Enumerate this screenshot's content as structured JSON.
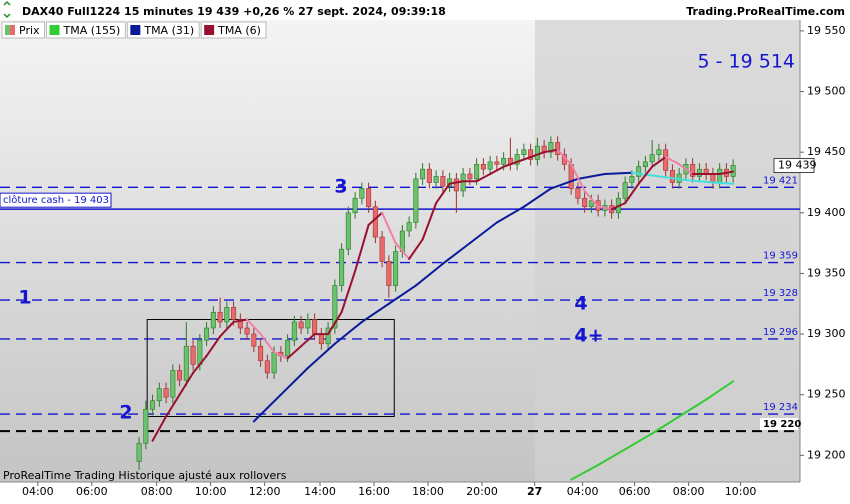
{
  "header": {
    "title": "DAX40 Full1224 15 minutes 19 439 +0,26 % 27 sept. 2024, 09:39:18",
    "site": "Trading.ProRealTime.com"
  },
  "footer": "ProRealTime Trading  Historique ajusté aux rollovers",
  "chart_data": {
    "type": "candlestick",
    "xlim": [
      -5.6,
      112.9
    ],
    "ylim": [
      19178,
      19559
    ],
    "xticks": [
      {
        "value": 0,
        "label": "04:00"
      },
      {
        "value": 8,
        "label": "06:00"
      },
      {
        "value": 17.6,
        "label": "08:00"
      },
      {
        "value": 25.6,
        "label": "10:00"
      },
      {
        "value": 33.6,
        "label": "12:00"
      },
      {
        "value": 41.8,
        "label": "14:00"
      },
      {
        "value": 49.8,
        "label": "16:00"
      },
      {
        "value": 57.8,
        "label": "18:00"
      },
      {
        "value": 65.8,
        "label": "20:00"
      },
      {
        "value": 73.6,
        "label": "27"
      },
      {
        "value": 80.7,
        "label": "04:00"
      },
      {
        "value": 88.4,
        "label": "06:00"
      },
      {
        "value": 96.4,
        "label": "08:00"
      },
      {
        "value": 104.1,
        "label": "10:00"
      }
    ],
    "yticks": [
      {
        "value": 19200,
        "label": "19 200"
      },
      {
        "value": 19250,
        "label": "19 250"
      },
      {
        "value": 19300,
        "label": "19 300"
      },
      {
        "value": 19350,
        "label": "19 350"
      },
      {
        "value": 19400,
        "label": "19 400"
      },
      {
        "value": 19450,
        "label": "19 450"
      },
      {
        "value": 19500,
        "label": "19 500"
      },
      {
        "value": 19550,
        "label": "19 550"
      }
    ],
    "price": {
      "name": "Prix",
      "up_color": "#6cc26c",
      "down_color": "#e86a6a",
      "x": [
        15,
        16,
        17,
        18,
        19,
        20,
        21,
        22,
        23,
        24,
        25,
        26,
        27,
        28,
        29,
        30,
        31,
        32,
        33,
        34,
        35,
        36,
        37,
        38,
        39,
        40,
        41,
        42,
        43,
        44,
        45,
        46,
        47,
        48,
        49,
        50,
        51,
        52,
        53,
        54,
        55,
        56,
        57,
        58,
        59,
        60,
        61,
        62,
        63,
        64,
        65,
        66,
        67,
        68,
        69,
        70,
        71,
        72,
        73,
        74,
        75,
        76,
        77,
        78,
        79,
        80,
        81,
        82,
        83,
        84,
        85,
        86,
        87,
        88,
        89,
        90,
        91,
        92,
        93,
        94,
        95,
        96,
        97,
        98,
        99,
        100,
        101,
        102,
        103
      ],
      "open": [
        19195,
        19210,
        19238,
        19245,
        19255,
        19248,
        19270,
        19262,
        19290,
        19275,
        19295,
        19305,
        19318,
        19310,
        19322,
        19312,
        19305,
        19300,
        19290,
        19278,
        19268,
        19285,
        19282,
        19295,
        19310,
        19305,
        19312,
        19300,
        19292,
        19305,
        19340,
        19370,
        19400,
        19412,
        19420,
        19405,
        19380,
        19360,
        19340,
        19368,
        19385,
        19392,
        19428,
        19436,
        19425,
        19430,
        19422,
        19428,
        19418,
        19432,
        19428,
        19440,
        19436,
        19442,
        19440,
        19445,
        19440,
        19448,
        19452,
        19444,
        19455,
        19450,
        19458,
        19448,
        19440,
        19420,
        19412,
        19405,
        19410,
        19402,
        19406,
        19400,
        19412,
        19425,
        19430,
        19438,
        19442,
        19448,
        19452,
        19435,
        19425,
        19432,
        19440,
        19430,
        19436,
        19432,
        19425,
        19436,
        19430
      ],
      "high": [
        19215,
        19245,
        19250,
        19260,
        19260,
        19275,
        19275,
        19310,
        19295,
        19300,
        19310,
        19323,
        19330,
        19327,
        19327,
        19317,
        19310,
        19305,
        19295,
        19283,
        19290,
        19290,
        19300,
        19315,
        19315,
        19317,
        19317,
        19305,
        19310,
        19345,
        19375,
        19405,
        19417,
        19425,
        19425,
        19410,
        19385,
        19365,
        19373,
        19390,
        19397,
        19433,
        19441,
        19441,
        19435,
        19435,
        19433,
        19433,
        19437,
        19437,
        19445,
        19445,
        19447,
        19447,
        19450,
        19462,
        19453,
        19457,
        19457,
        19462,
        19460,
        19463,
        19463,
        19453,
        19445,
        19425,
        19417,
        19415,
        19415,
        19411,
        19411,
        19417,
        19430,
        19435,
        19443,
        19447,
        19460,
        19457,
        19457,
        19440,
        19437,
        19445,
        19445,
        19441,
        19441,
        19437,
        19441,
        19441,
        19444
      ],
      "low": [
        19188,
        19205,
        19233,
        19240,
        19243,
        19243,
        19257,
        19257,
        19270,
        19270,
        19290,
        19300,
        19305,
        19305,
        19307,
        19300,
        19295,
        19285,
        19273,
        19263,
        19263,
        19277,
        19277,
        19290,
        19300,
        19300,
        19295,
        19287,
        19287,
        19300,
        19335,
        19365,
        19395,
        19407,
        19400,
        19375,
        19355,
        19330,
        19335,
        19363,
        19380,
        19387,
        19423,
        19420,
        19420,
        19417,
        19417,
        19400,
        19413,
        19423,
        19423,
        19431,
        19431,
        19435,
        19435,
        19435,
        19435,
        19443,
        19439,
        19439,
        19445,
        19445,
        19443,
        19435,
        19415,
        19407,
        19400,
        19400,
        19397,
        19397,
        19395,
        19395,
        19407,
        19420,
        19425,
        19433,
        19437,
        19443,
        19430,
        19420,
        19420,
        19427,
        19425,
        19425,
        19427,
        19420,
        19420,
        19425,
        19425
      ],
      "close": [
        19210,
        19238,
        19245,
        19255,
        19248,
        19270,
        19262,
        19290,
        19275,
        19295,
        19305,
        19318,
        19310,
        19322,
        19312,
        19305,
        19300,
        19290,
        19278,
        19268,
        19285,
        19282,
        19295,
        19310,
        19305,
        19312,
        19300,
        19292,
        19305,
        19340,
        19370,
        19400,
        19412,
        19420,
        19405,
        19380,
        19360,
        19340,
        19368,
        19385,
        19392,
        19428,
        19436,
        19425,
        19430,
        19422,
        19428,
        19418,
        19432,
        19428,
        19440,
        19436,
        19442,
        19440,
        19445,
        19440,
        19448,
        19452,
        19444,
        19455,
        19450,
        19458,
        19448,
        19440,
        19420,
        19412,
        19405,
        19410,
        19402,
        19406,
        19400,
        19412,
        19425,
        19430,
        19438,
        19442,
        19448,
        19452,
        19435,
        19425,
        19432,
        19440,
        19430,
        19436,
        19432,
        19425,
        19436,
        19430,
        19439
      ]
    },
    "series": [
      {
        "name": "TMA (155)",
        "color": "#33cc33",
        "x": [
          79,
          83,
          87,
          91,
          95,
          99,
          103
        ],
        "values": [
          19180,
          19192,
          19205,
          19218,
          19232,
          19246,
          19261
        ]
      },
      {
        "name": "TMA (31)",
        "color": "#0a1a9a",
        "color_falling": "#40e0e0",
        "x": [
          32,
          36,
          40,
          44,
          48,
          52,
          56,
          60,
          64,
          68,
          72,
          76,
          80,
          84,
          88,
          92,
          96,
          100,
          103
        ],
        "values": [
          19228,
          19250,
          19272,
          19292,
          19310,
          19325,
          19340,
          19358,
          19375,
          19392,
          19405,
          19420,
          19428,
          19432,
          19433,
          19430,
          19427,
          19425,
          19424
        ]
      },
      {
        "name": "TMA (6)",
        "color": "#9a1030",
        "color_falling": "#f080a8",
        "x": [
          17,
          19,
          21,
          23,
          25,
          27,
          29,
          31,
          33,
          35,
          37,
          39,
          41,
          43,
          45,
          47,
          49,
          51,
          53,
          55,
          57,
          59,
          61,
          63,
          65,
          67,
          69,
          71,
          73,
          75,
          77,
          79,
          81,
          83,
          85,
          87,
          89,
          91,
          93,
          95,
          97,
          99,
          101,
          103
        ],
        "values": [
          19212,
          19232,
          19250,
          19268,
          19282,
          19298,
          19310,
          19312,
          19300,
          19285,
          19280,
          19290,
          19300,
          19300,
          19318,
          19352,
          19390,
          19400,
          19375,
          19362,
          19378,
          19408,
          19424,
          19426,
          19426,
          19432,
          19438,
          19442,
          19446,
          19450,
          19452,
          19440,
          19418,
          19405,
          19403,
          19408,
          19424,
          19438,
          19446,
          19440,
          19432,
          19432,
          19432,
          19434
        ]
      }
    ],
    "levels": [
      {
        "value": 19421,
        "label": "19 421",
        "color": "#1515d0",
        "style": "dashed"
      },
      {
        "value": 19359,
        "label": "19 359",
        "color": "#1515d0",
        "style": "dashed"
      },
      {
        "value": 19328,
        "label": "19 328",
        "color": "#1515d0",
        "style": "dashed"
      },
      {
        "value": 19296,
        "label": "19 296",
        "color": "#1515d0",
        "style": "dashed"
      },
      {
        "value": 19234,
        "label": "19 234",
        "color": "#1515d0",
        "style": "dashed"
      },
      {
        "value": 19220,
        "label": "19 220",
        "color": "#000000",
        "style": "dashed"
      }
    ],
    "cash_close": {
      "value": 19403,
      "label": "clôture cash -  19 403",
      "color": "#1515d0"
    },
    "last_price": {
      "value": 19439,
      "label": "19 439"
    },
    "box": {
      "x": [
        16.2,
        52.8
      ],
      "y": [
        19232,
        19312
      ]
    },
    "annotations": [
      "1",
      "2",
      "3",
      "4",
      "4+",
      "5 - 19 514"
    ]
  }
}
